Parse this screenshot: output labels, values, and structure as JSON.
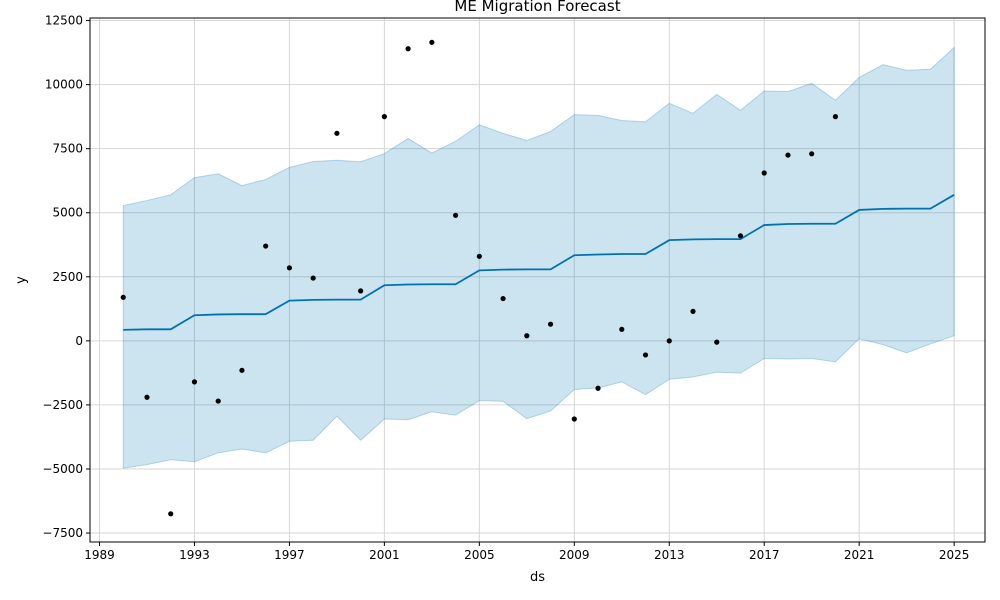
{
  "chart_data": {
    "type": "line",
    "title": "ME Migration Forecast",
    "xlabel": "ds",
    "ylabel": "y",
    "xlim": [
      1988.6,
      2026.3
    ],
    "ylim": [
      -7850,
      12600
    ],
    "grid": true,
    "x_ticks": [
      1989,
      1993,
      1997,
      2001,
      2005,
      2009,
      2013,
      2017,
      2021,
      2025
    ],
    "x_tick_labels": [
      "1989",
      "1993",
      "1997",
      "2001",
      "2005",
      "2009",
      "2013",
      "2017",
      "2021",
      "2025"
    ],
    "y_ticks": [
      -7500,
      -5000,
      -2500,
      0,
      2500,
      5000,
      7500,
      10000,
      12500
    ],
    "y_tick_labels": [
      "−7500",
      "−5000",
      "−2500",
      "0",
      "2500",
      "5000",
      "7500",
      "10000",
      "12500"
    ],
    "series": [
      {
        "kind": "observed",
        "color": "#000000",
        "points": [
          [
            1990,
            1700
          ],
          [
            1991,
            -2200
          ],
          [
            1992,
            -6750
          ],
          [
            1993,
            -1600
          ],
          [
            1994,
            -2350
          ],
          [
            1995,
            -1150
          ],
          [
            1996,
            3700
          ],
          [
            1997,
            2850
          ],
          [
            1998,
            2450
          ],
          [
            1999,
            8100
          ],
          [
            2000,
            1950
          ],
          [
            2001,
            8750
          ],
          [
            2002,
            11400
          ],
          [
            2003,
            11650
          ],
          [
            2004,
            4900
          ],
          [
            2005,
            3300
          ],
          [
            2006,
            1650
          ],
          [
            2007,
            200
          ],
          [
            2008,
            650
          ],
          [
            2009,
            -3050
          ],
          [
            2010,
            -1850
          ],
          [
            2011,
            450
          ],
          [
            2012,
            -550
          ],
          [
            2013,
            0
          ],
          [
            2014,
            1150
          ],
          [
            2015,
            -50
          ],
          [
            2016,
            4100
          ],
          [
            2017,
            6550
          ],
          [
            2018,
            7250
          ],
          [
            2019,
            7300
          ],
          [
            2020,
            8750
          ]
        ]
      },
      {
        "kind": "forecast",
        "color": "#0072b2",
        "x": [
          1990,
          1991,
          1992,
          1993,
          1994,
          1995,
          1996,
          1997,
          1998,
          1999,
          2000,
          2001,
          2002,
          2003,
          2004,
          2005,
          2006,
          2007,
          2008,
          2009,
          2010,
          2011,
          2012,
          2013,
          2014,
          2015,
          2016,
          2017,
          2018,
          2019,
          2020,
          2021,
          2022,
          2023,
          2024,
          2025
        ],
        "yhat": [
          430,
          450,
          450,
          1000,
          1030,
          1040,
          1040,
          1570,
          1600,
          1610,
          1610,
          2170,
          2200,
          2210,
          2210,
          2750,
          2780,
          2790,
          2790,
          3340,
          3370,
          3390,
          3390,
          3930,
          3960,
          3970,
          3970,
          4520,
          4560,
          4570,
          4570,
          5110,
          5150,
          5160,
          5160,
          5700
        ],
        "upper": [
          5280,
          5480,
          5700,
          6370,
          6520,
          6060,
          6300,
          6770,
          7000,
          7050,
          6990,
          7310,
          7900,
          7330,
          7790,
          8430,
          8100,
          7820,
          8170,
          8830,
          8800,
          8600,
          8550,
          9270,
          8880,
          9620,
          9000,
          9750,
          9730,
          10050,
          9390,
          10280,
          10780,
          10560,
          10600,
          11450
        ],
        "lower": [
          -4970,
          -4830,
          -4640,
          -4720,
          -4370,
          -4220,
          -4370,
          -3920,
          -3880,
          -2940,
          -3880,
          -3050,
          -3080,
          -2770,
          -2900,
          -2330,
          -2360,
          -3040,
          -2740,
          -1900,
          -1840,
          -1600,
          -2100,
          -1500,
          -1410,
          -1220,
          -1260,
          -690,
          -710,
          -690,
          -820,
          80,
          -150,
          -470,
          -120,
          200
        ],
        "band_color": "#0072b2"
      }
    ]
  }
}
